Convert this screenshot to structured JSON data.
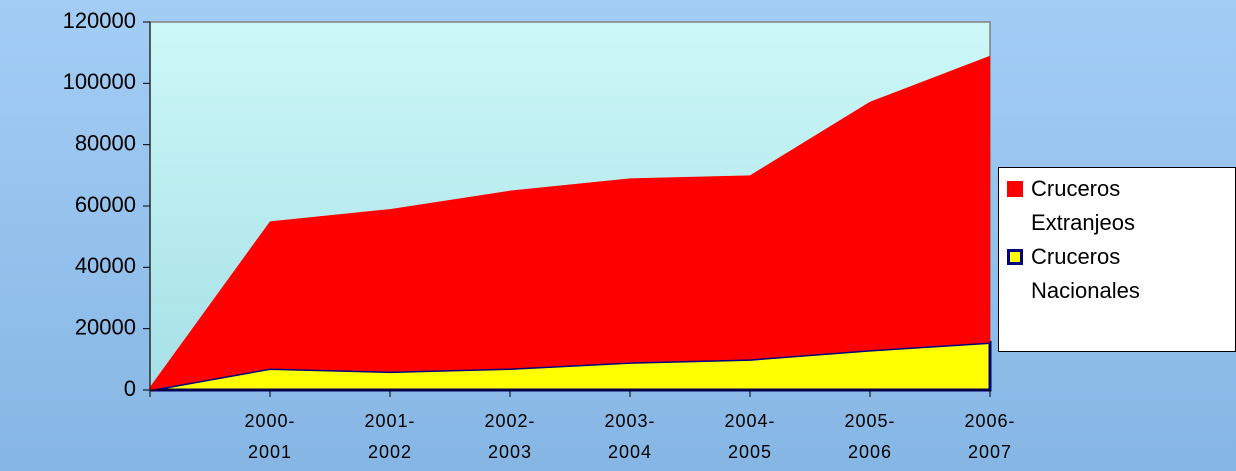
{
  "chart_data": {
    "type": "stacked_area",
    "categories": [
      null,
      "2000-2001",
      "2001-2002",
      "2002-2003",
      "2003-2004",
      "2004-2005",
      "2005-2006",
      "2006-2007"
    ],
    "series": [
      {
        "name": "Cruceros Nacionales",
        "color": "#ffff00",
        "edge": "#000080",
        "values": [
          0,
          7000,
          6000,
          7000,
          9000,
          10000,
          13000,
          15500
        ]
      },
      {
        "name": "Cruceros Extranjeos",
        "color": "#ff0000",
        "values": [
          1000,
          48000,
          53000,
          58000,
          60000,
          60000,
          81000,
          93500
        ]
      }
    ],
    "ylim": [
      0,
      120000
    ],
    "yticks": [
      0,
      20000,
      40000,
      60000,
      80000,
      100000,
      120000
    ],
    "legend": "right"
  }
}
